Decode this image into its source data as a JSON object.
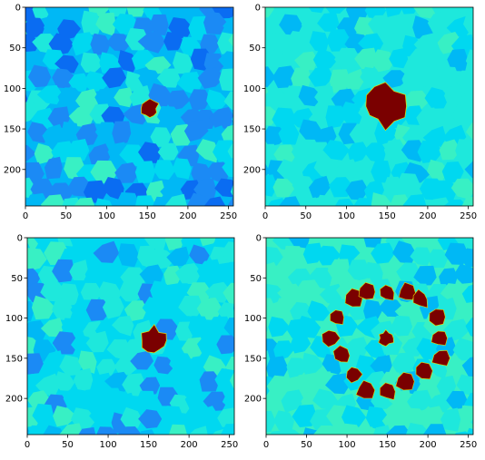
{
  "figure": {
    "layout": "2x2 grid of image panels",
    "colormap": "jet",
    "colors": {
      "deep_blue": "#0a6cf2",
      "mid_blue": "#1b8af5",
      "light_blue": "#00b8f5",
      "cyan": "#00d8f0",
      "aqua": "#1ee8dc",
      "teal_green": "#38f0c4",
      "dark_red": "#7a0000",
      "edge_yellow": "#e6dc00"
    }
  },
  "chart_data": [
    {
      "type": "heatmap",
      "panel": "top-left",
      "title": "",
      "xlabel": "",
      "ylabel": "",
      "xlim": [
        0,
        256
      ],
      "ylim": [
        245,
        0
      ],
      "xticks": [
        "0",
        "50",
        "100",
        "150",
        "200",
        "250"
      ],
      "yticks": [
        "0",
        "50",
        "100",
        "150",
        "200"
      ],
      "background": "mosaic of blue to cyan Voronoi-like cells",
      "hot_regions": [
        {
          "shape": "blob",
          "center": [
            153,
            125
          ],
          "radius": 12
        }
      ]
    },
    {
      "type": "heatmap",
      "panel": "top-right",
      "title": "",
      "xlabel": "",
      "ylabel": "",
      "xlim": [
        0,
        256
      ],
      "ylim": [
        245,
        0
      ],
      "xticks": [
        "0",
        "50",
        "100",
        "150",
        "200",
        "250"
      ],
      "yticks": [
        "0",
        "50",
        "100",
        "150",
        "200"
      ],
      "background": "mostly cyan / aqua cells",
      "hot_regions": [
        {
          "shape": "blob",
          "center": [
            148,
            122
          ],
          "radius": 28
        }
      ]
    },
    {
      "type": "heatmap",
      "panel": "bottom-left",
      "title": "",
      "xlabel": "",
      "ylabel": "",
      "xlim": [
        0,
        256
      ],
      "ylim": [
        245,
        0
      ],
      "xticks": [
        "0",
        "50",
        "100",
        "150",
        "200",
        "250"
      ],
      "yticks": [
        "0",
        "50",
        "100",
        "150",
        "200"
      ],
      "background": "cyan / aqua cells",
      "hot_regions": [
        {
          "shape": "blob",
          "center": [
            157,
            128
          ],
          "radius": 18
        }
      ]
    },
    {
      "type": "heatmap",
      "panel": "bottom-right",
      "title": "",
      "xlabel": "",
      "ylabel": "",
      "xlim": [
        0,
        256
      ],
      "ylim": [
        245,
        0
      ],
      "xticks": [
        "0",
        "50",
        "100",
        "150",
        "200",
        "250"
      ],
      "yticks": [
        "0",
        "50",
        "100",
        "150",
        "200"
      ],
      "background": "aqua / teal-green cells",
      "hot_regions": [
        {
          "shape": "ring",
          "center": [
            150,
            125
          ],
          "radius": 68
        },
        {
          "shape": "blob",
          "center": [
            148,
            125
          ],
          "radius": 10
        }
      ]
    }
  ]
}
